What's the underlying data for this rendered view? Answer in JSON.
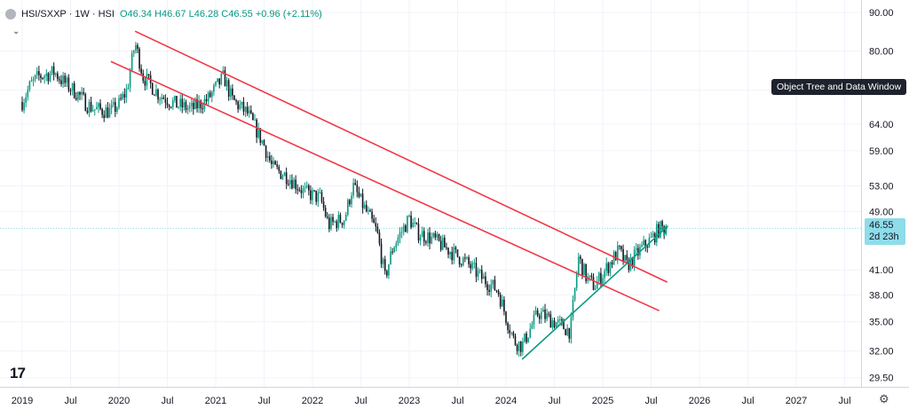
{
  "header": {
    "symbol": "HSI/SXXP · 1W · HSI",
    "ohlc": "O46.34 H46.67 L46.28 C46.55 +0.96 (+2.11%)"
  },
  "tooltip": "Object Tree and Data Window",
  "last_price": {
    "price": "46.55",
    "countdown": "2d 23h"
  },
  "colors": {
    "up": "#089981",
    "down": "#131722",
    "channel": "#f23645",
    "trend": "#089981",
    "last_bg": "#8fdcea"
  },
  "chart_data": {
    "type": "candlestick",
    "symbol": "HSI/SXXP",
    "interval": "1W",
    "scale": "log",
    "ylim": [
      29.0,
      92.0
    ],
    "y_ticks": [
      "90.00",
      "80.00",
      "71.00",
      "64.00",
      "59.00",
      "53.00",
      "49.00",
      "46.55",
      "41.00",
      "38.00",
      "35.00",
      "32.00",
      "29.50"
    ],
    "x_ticks": [
      "2019",
      "Jul",
      "2020",
      "Jul",
      "2021",
      "Jul",
      "2022",
      "Jul",
      "2023",
      "Jul",
      "2024",
      "Jul",
      "2025",
      "Jul",
      "2026",
      "Jul",
      "2027",
      "Jul"
    ],
    "price_path": [
      [
        "2019-01",
        68.5
      ],
      [
        "2019-02",
        72.0
      ],
      [
        "2019-03",
        74.0
      ],
      [
        "2019-05",
        75.0
      ],
      [
        "2019-06",
        73.0
      ],
      [
        "2019-08",
        70.0
      ],
      [
        "2019-09",
        68.0
      ],
      [
        "2019-10",
        67.0
      ],
      [
        "2019-12",
        66.5
      ],
      [
        "2020-01",
        68.0
      ],
      [
        "2020-02",
        71.0
      ],
      [
        "2020-03",
        82.0
      ],
      [
        "2020-04",
        74.0
      ],
      [
        "2020-06",
        70.0
      ],
      [
        "2020-08",
        68.0
      ],
      [
        "2020-10",
        67.0
      ],
      [
        "2020-12",
        69.0
      ],
      [
        "2021-02",
        74.0
      ],
      [
        "2021-03",
        69.0
      ],
      [
        "2021-05",
        66.0
      ],
      [
        "2021-07",
        60.0
      ],
      [
        "2021-08",
        56.0
      ],
      [
        "2021-10",
        54.5
      ],
      [
        "2021-12",
        52.0
      ],
      [
        "2022-02",
        51.0
      ],
      [
        "2022-03",
        47.0
      ],
      [
        "2022-05",
        48.0
      ],
      [
        "2022-06",
        53.0
      ],
      [
        "2022-07",
        50.5
      ],
      [
        "2022-09",
        46.0
      ],
      [
        "2022-10",
        40.0
      ],
      [
        "2022-11",
        44.0
      ],
      [
        "2023-01",
        48.0
      ],
      [
        "2023-02",
        46.0
      ],
      [
        "2023-04",
        45.0
      ],
      [
        "2023-06",
        43.5
      ],
      [
        "2023-08",
        42.0
      ],
      [
        "2023-10",
        40.0
      ],
      [
        "2023-12",
        38.5
      ],
      [
        "2024-01",
        35.5
      ],
      [
        "2024-02",
        33.0
      ],
      [
        "2024-03",
        32.5
      ],
      [
        "2024-05",
        36.0
      ],
      [
        "2024-06",
        35.5
      ],
      [
        "2024-08",
        34.5
      ],
      [
        "2024-09",
        34.0
      ],
      [
        "2024-10",
        42.5
      ],
      [
        "2024-11",
        40.0
      ],
      [
        "2024-12",
        39.0
      ],
      [
        "2025-02",
        42.0
      ],
      [
        "2025-03",
        43.5
      ],
      [
        "2025-04",
        41.5
      ],
      [
        "2025-06",
        44.0
      ],
      [
        "2025-07",
        45.0
      ],
      [
        "2025-08",
        46.5
      ],
      [
        "2025-09",
        46.55
      ]
    ],
    "drawings": {
      "channel_upper": [
        [
          "2020-03",
          85.0
        ],
        [
          "2025-09",
          39.5
        ]
      ],
      "channel_lower": [
        [
          "2019-12",
          77.5
        ],
        [
          "2025-08",
          36.2
        ]
      ],
      "trend_arrow": [
        [
          "2024-03",
          31.2
        ],
        [
          "2025-09",
          46.8
        ]
      ]
    }
  }
}
